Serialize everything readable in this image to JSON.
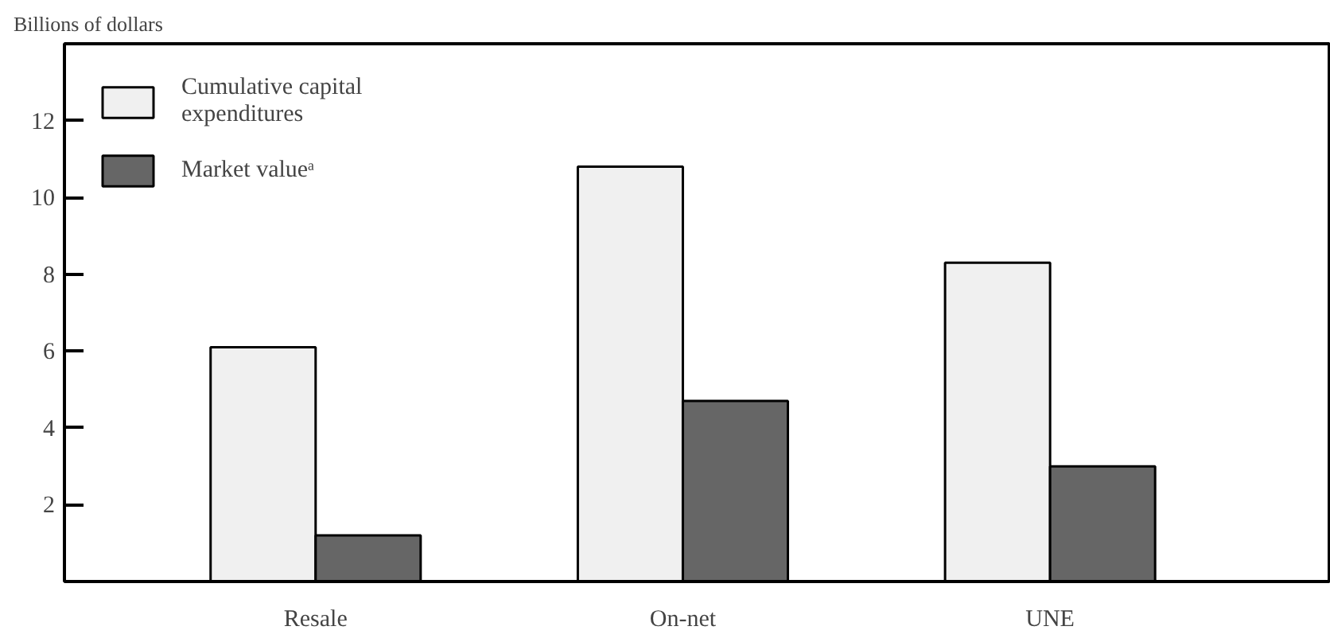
{
  "chart_data": {
    "type": "bar",
    "ylabel": "Billions of dollars",
    "categories": [
      "Resale",
      "On-net",
      "UNE"
    ],
    "series": [
      {
        "name": "Cumulative capital\nexpenditures",
        "color": "#f0f0f0",
        "values": [
          6.1,
          10.8,
          8.3
        ]
      },
      {
        "name": "Market valueᵃ",
        "color": "#666666",
        "values": [
          1.2,
          4.7,
          3.0
        ]
      }
    ],
    "ylim": [
      0,
      14
    ],
    "yticks": [
      2,
      4,
      6,
      8,
      10,
      12
    ],
    "grid": false,
    "legend": "top left"
  }
}
